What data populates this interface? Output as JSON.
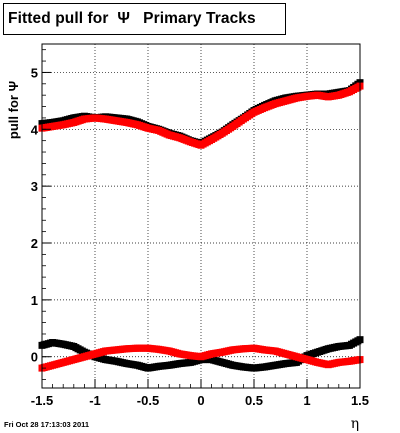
{
  "title": "Fitted pull for  Ψ   Primary Tracks",
  "footer": "Fri Oct 28 17:13:03 2011",
  "chart_data": {
    "type": "scatter",
    "title": "Fitted pull for  Ψ   Primary Tracks",
    "xlabel": "η",
    "ylabel": "pull for Ψ",
    "xlim": [
      -1.5,
      1.5
    ],
    "ylim": [
      -0.55,
      5.5
    ],
    "x_ticks": [
      "-1.5",
      "-1",
      "-0.5",
      "0",
      "0.5",
      "1",
      "1.5"
    ],
    "y_ticks": [
      "0",
      "1",
      "2",
      "3",
      "4",
      "5"
    ],
    "grid": true,
    "series": [
      {
        "color": "#000000",
        "marker": "square",
        "x": [
          -1.5,
          -1.4,
          -1.3,
          -1.2,
          -1.1,
          -1.0,
          -0.9,
          -0.8,
          -0.7,
          -0.6,
          -0.5,
          -0.4,
          -0.3,
          -0.2,
          -0.1,
          0.0,
          0.1,
          0.2,
          0.3,
          0.4,
          0.5,
          0.6,
          0.7,
          0.8,
          0.9,
          1.0,
          1.1,
          1.2,
          1.3,
          1.4,
          1.5
        ],
        "y_upper": [
          4.1,
          4.12,
          4.15,
          4.2,
          4.23,
          4.2,
          4.22,
          4.2,
          4.18,
          4.13,
          4.05,
          4.0,
          3.93,
          3.88,
          3.8,
          3.75,
          3.85,
          3.95,
          4.08,
          4.2,
          4.33,
          4.42,
          4.5,
          4.55,
          4.58,
          4.6,
          4.62,
          4.62,
          4.65,
          4.68,
          4.82
        ],
        "y_lower": [
          0.2,
          0.25,
          0.22,
          0.18,
          0.08,
          0.0,
          -0.05,
          -0.08,
          -0.12,
          -0.15,
          -0.2,
          -0.17,
          -0.15,
          -0.12,
          -0.1,
          -0.05,
          -0.05,
          -0.1,
          -0.15,
          -0.18,
          -0.2,
          -0.18,
          -0.15,
          -0.12,
          -0.1,
          0.02,
          0.08,
          0.14,
          0.18,
          0.2,
          0.3
        ]
      },
      {
        "color": "#ff0000",
        "marker": "square",
        "x": [
          -1.5,
          -1.4,
          -1.3,
          -1.2,
          -1.1,
          -1.0,
          -0.9,
          -0.8,
          -0.7,
          -0.6,
          -0.5,
          -0.4,
          -0.3,
          -0.2,
          -0.1,
          0.0,
          0.1,
          0.2,
          0.3,
          0.4,
          0.5,
          0.6,
          0.7,
          0.8,
          0.9,
          1.0,
          1.1,
          1.2,
          1.3,
          1.4,
          1.5
        ],
        "y_upper": [
          4.02,
          4.05,
          4.08,
          4.12,
          4.18,
          4.2,
          4.18,
          4.15,
          4.12,
          4.08,
          4.02,
          3.98,
          3.9,
          3.85,
          3.78,
          3.72,
          3.82,
          3.93,
          4.05,
          4.18,
          4.3,
          4.38,
          4.45,
          4.5,
          4.55,
          4.58,
          4.6,
          4.57,
          4.6,
          4.66,
          4.76
        ],
        "y_lower": [
          -0.2,
          -0.15,
          -0.1,
          -0.05,
          0.0,
          0.05,
          0.1,
          0.12,
          0.14,
          0.15,
          0.15,
          0.13,
          0.1,
          0.05,
          0.02,
          0.0,
          0.05,
          0.08,
          0.12,
          0.14,
          0.15,
          0.12,
          0.1,
          0.05,
          0.0,
          -0.05,
          -0.1,
          -0.14,
          -0.1,
          -0.08,
          -0.05
        ]
      }
    ]
  }
}
